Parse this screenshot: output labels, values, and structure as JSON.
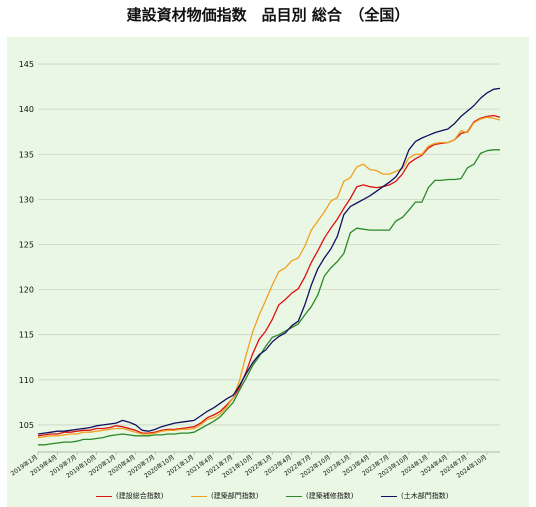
{
  "chart_data": {
    "type": "line",
    "title": "建設資材物価指数　品目別 総合　（全国）",
    "ylim": [
      102,
      147
    ],
    "yticks": [
      105,
      110,
      115,
      120,
      125,
      130,
      135,
      140,
      145
    ],
    "grid": true,
    "legend_position": "bottom",
    "x": [
      "2019年1月",
      "2019年2月",
      "2019年3月",
      "2019年4月",
      "2019年5月",
      "2019年6月",
      "2019年7月",
      "2019年8月",
      "2019年9月",
      "2019年10月",
      "2019年11月",
      "2019年12月",
      "2020年1月",
      "2020年2月",
      "2020年3月",
      "2020年4月",
      "2020年5月",
      "2020年6月",
      "2020年7月",
      "2020年8月",
      "2020年9月",
      "2020年10月",
      "2020年11月",
      "2020年12月",
      "2021年1月",
      "2021年2月",
      "2021年3月",
      "2021年4月",
      "2021年5月",
      "2021年6月",
      "2021年7月",
      "2021年8月",
      "2021年9月",
      "2021年10月",
      "2021年11月",
      "2021年12月",
      "2022年1月",
      "2022年2月",
      "2022年3月",
      "2022年4月",
      "2022年5月",
      "2022年6月",
      "2022年7月",
      "2022年8月",
      "2022年9月",
      "2022年10月",
      "2022年11月",
      "2022年12月",
      "2023年1月",
      "2023年2月",
      "2023年3月",
      "2023年4月",
      "2023年5月",
      "2023年6月",
      "2023年7月",
      "2023年8月",
      "2023年9月",
      "2023年10月",
      "2023年11月",
      "2023年12月",
      "2024年1月",
      "2024年2月",
      "2024年3月",
      "2024年4月",
      "2024年5月",
      "2024年6月",
      "2024年7月",
      "2024年8月",
      "2024年9月",
      "2024年10月",
      "2024年11月",
      "2024年12月"
    ],
    "xtick_labels": [
      "2019年1月",
      "2019年4月",
      "2019年7月",
      "2019年10月",
      "2020年1月",
      "2020年4月",
      "2020年7月",
      "2020年10月",
      "2021年1月",
      "2021年4月",
      "2021年7月",
      "2021年10月",
      "2022年1月",
      "2022年4月",
      "2022年7月",
      "2022年10月",
      "2023年1月",
      "2023年4月",
      "2023年7月",
      "2023年10月",
      "2024年1月",
      "2024年4月",
      "2024年7月",
      "2024年10月"
    ],
    "series": [
      {
        "name": "(建設総合指数)",
        "color": "#dd1111",
        "values": [
          103.8,
          103.9,
          104.0,
          104.0,
          104.2,
          104.2,
          104.3,
          104.4,
          104.4,
          104.6,
          104.6,
          104.7,
          104.9,
          104.8,
          104.6,
          104.4,
          104.1,
          104.1,
          104.2,
          104.4,
          104.5,
          104.5,
          104.6,
          104.7,
          104.8,
          105.2,
          105.8,
          106.1,
          106.5,
          107.2,
          108.0,
          109.2,
          110.9,
          112.9,
          114.5,
          115.4,
          116.7,
          118.3,
          118.9,
          119.6,
          120.1,
          121.4,
          123.0,
          124.3,
          125.7,
          126.8,
          127.8,
          129.0,
          130.1,
          131.4,
          131.6,
          131.4,
          131.3,
          131.4,
          131.6,
          132.0,
          132.8,
          134.0,
          134.5,
          134.9,
          135.7,
          136.1,
          136.2,
          136.3,
          136.6,
          137.3,
          137.5,
          138.6,
          139.0,
          139.2,
          139.3,
          139.1
        ]
      },
      {
        "name": "(建築部門指数)",
        "color": "#f0a020",
        "values": [
          103.6,
          103.7,
          103.8,
          103.8,
          103.9,
          104.0,
          104.0,
          104.2,
          104.2,
          104.3,
          104.4,
          104.5,
          104.6,
          104.6,
          104.4,
          104.2,
          104.0,
          104.0,
          104.1,
          104.3,
          104.4,
          104.4,
          104.5,
          104.5,
          104.6,
          105.0,
          105.6,
          105.8,
          106.2,
          107.0,
          108.0,
          110.0,
          112.8,
          115.3,
          117.2,
          118.8,
          120.5,
          122.0,
          122.4,
          123.2,
          123.5,
          124.8,
          126.6,
          127.6,
          128.6,
          129.8,
          130.2,
          132.0,
          132.4,
          133.6,
          133.9,
          133.3,
          133.2,
          132.8,
          132.8,
          133.1,
          133.4,
          134.6,
          135.0,
          135.0,
          135.9,
          136.2,
          136.3,
          136.3,
          136.6,
          137.6,
          137.4,
          138.5,
          138.9,
          139.1,
          139.0,
          138.8
        ]
      },
      {
        "name": "(建築補修指数)",
        "color": "#2a8a2a",
        "values": [
          102.8,
          102.8,
          102.9,
          103.0,
          103.1,
          103.1,
          103.2,
          103.4,
          103.4,
          103.5,
          103.6,
          103.8,
          103.9,
          104.0,
          103.9,
          103.8,
          103.8,
          103.8,
          103.9,
          103.9,
          104.0,
          104.0,
          104.1,
          104.1,
          104.2,
          104.6,
          105.0,
          105.4,
          105.9,
          106.7,
          107.5,
          108.9,
          110.2,
          111.6,
          112.6,
          113.7,
          114.7,
          115.0,
          115.4,
          115.8,
          116.2,
          117.2,
          118.1,
          119.4,
          121.5,
          122.4,
          123.1,
          124.0,
          126.3,
          126.8,
          126.7,
          126.6,
          126.6,
          126.6,
          126.6,
          127.6,
          128.0,
          128.8,
          129.7,
          129.7,
          131.3,
          132.1,
          132.1,
          132.2,
          132.2,
          132.3,
          133.5,
          133.9,
          135.1,
          135.4,
          135.5,
          135.5
        ]
      },
      {
        "name": "(土木部門指数)",
        "color": "#101060",
        "values": [
          104.0,
          104.1,
          104.2,
          104.3,
          104.3,
          104.4,
          104.5,
          104.6,
          104.7,
          104.9,
          105.0,
          105.1,
          105.2,
          105.5,
          105.3,
          105.0,
          104.4,
          104.3,
          104.5,
          104.8,
          105.0,
          105.2,
          105.3,
          105.4,
          105.5,
          106.0,
          106.5,
          106.9,
          107.4,
          107.9,
          108.3,
          109.4,
          110.7,
          111.9,
          112.8,
          113.3,
          114.2,
          114.8,
          115.2,
          116.0,
          116.5,
          118.3,
          120.5,
          122.3,
          123.5,
          124.5,
          125.9,
          128.3,
          129.2,
          129.6,
          130.0,
          130.4,
          130.9,
          131.4,
          131.9,
          132.5,
          133.6,
          135.5,
          136.4,
          136.8,
          137.1,
          137.4,
          137.6,
          137.8,
          138.4,
          139.2,
          139.8,
          140.4,
          141.2,
          141.8,
          142.2,
          142.3
        ]
      }
    ]
  }
}
